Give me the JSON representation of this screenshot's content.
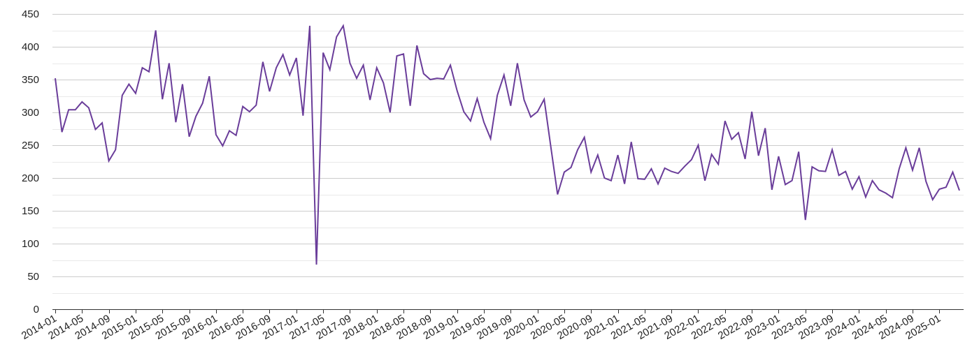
{
  "chart_data": {
    "type": "line",
    "title": "",
    "xlabel": "",
    "ylabel": "",
    "ylim": [
      0,
      450
    ],
    "y_ticks": [
      0,
      50,
      100,
      150,
      200,
      250,
      300,
      350,
      400,
      450
    ],
    "y_minor_grid": true,
    "grid": true,
    "legend": "none",
    "x_tick_labels": [
      "2014-01",
      "2014-05",
      "2014-09",
      "2015-01",
      "2015-05",
      "2015-09",
      "2016-01",
      "2016-05",
      "2016-09",
      "2017-01",
      "2017-05",
      "2017-09",
      "2018-01",
      "2018-05",
      "2018-09",
      "2019-01",
      "2019-05",
      "2019-09",
      "2020-01",
      "2020-05",
      "2020-09",
      "2021-01",
      "2021-05",
      "2021-09",
      "2022-01",
      "2022-05",
      "2022-09",
      "2023-01",
      "2023-05",
      "2023-09",
      "2024-01",
      "2024-05",
      "2024-09",
      "2025-01"
    ],
    "line_color": "#6a3d9a",
    "series": [
      {
        "x": [
          "2014-01",
          "2014-02",
          "2014-03",
          "2014-04",
          "2014-05",
          "2014-06",
          "2014-07",
          "2014-08",
          "2014-09",
          "2014-10",
          "2014-11",
          "2014-12",
          "2015-01",
          "2015-02",
          "2015-03",
          "2015-04",
          "2015-05",
          "2015-06",
          "2015-07",
          "2015-08",
          "2015-09",
          "2015-10",
          "2015-11",
          "2015-12",
          "2016-01",
          "2016-02",
          "2016-03",
          "2016-04",
          "2016-05",
          "2016-06",
          "2016-07",
          "2016-08",
          "2016-09",
          "2016-10",
          "2016-11",
          "2016-12",
          "2017-01",
          "2017-02",
          "2017-03",
          "2017-04",
          "2017-05",
          "2017-06",
          "2017-07",
          "2017-08",
          "2017-09",
          "2017-10",
          "2017-11",
          "2017-12",
          "2018-01",
          "2018-02",
          "2018-03",
          "2018-04",
          "2018-05",
          "2018-06",
          "2018-07",
          "2018-08",
          "2018-09",
          "2018-10",
          "2018-11",
          "2018-12",
          "2019-01",
          "2019-02",
          "2019-03",
          "2019-04",
          "2019-05",
          "2019-06",
          "2019-07",
          "2019-08",
          "2019-09",
          "2019-10",
          "2019-11",
          "2019-12",
          "2020-01",
          "2020-02",
          "2020-03",
          "2020-04",
          "2020-05",
          "2020-06",
          "2020-07",
          "2020-08",
          "2020-09",
          "2020-10",
          "2020-11",
          "2020-12",
          "2021-01",
          "2021-02",
          "2021-03",
          "2021-04",
          "2021-05",
          "2021-06",
          "2021-07",
          "2021-08",
          "2021-09",
          "2021-10",
          "2021-11",
          "2021-12",
          "2022-01",
          "2022-02",
          "2022-03",
          "2022-04",
          "2022-05",
          "2022-06",
          "2022-07",
          "2022-08",
          "2022-09",
          "2022-10",
          "2022-11",
          "2022-12",
          "2023-01",
          "2023-02",
          "2023-03",
          "2023-04",
          "2023-05",
          "2023-06",
          "2023-07",
          "2023-08",
          "2023-09",
          "2023-10",
          "2023-11",
          "2023-12",
          "2024-01",
          "2024-02",
          "2024-03",
          "2024-04",
          "2024-05",
          "2024-06",
          "2024-07",
          "2024-08",
          "2024-09",
          "2024-10",
          "2024-11",
          "2024-12",
          "2025-01",
          "2025-02",
          "2025-03",
          "2025-04"
        ],
        "values": [
          352,
          270,
          304,
          304,
          316,
          307,
          274,
          284,
          226,
          243,
          326,
          343,
          329,
          368,
          362,
          425,
          320,
          375,
          285,
          343,
          263,
          294,
          314,
          355,
          266,
          249,
          272,
          265,
          309,
          301,
          311,
          377,
          332,
          368,
          388,
          357,
          383,
          295,
          432,
          68,
          391,
          365,
          415,
          432,
          375,
          352,
          372,
          319,
          368,
          345,
          300,
          386,
          389,
          310,
          402,
          359,
          350,
          352,
          351,
          372,
          333,
          301,
          287,
          321,
          285,
          260,
          326,
          357,
          310,
          375,
          319,
          293,
          301,
          320,
          247,
          175,
          209,
          216,
          243,
          262,
          209,
          235,
          200,
          196,
          235,
          191,
          255,
          199,
          198,
          214,
          191,
          215,
          210,
          207,
          218,
          228,
          250,
          196,
          236,
          221,
          287,
          259,
          269,
          229,
          301,
          234,
          276,
          182,
          233,
          190,
          196,
          240,
          136,
          217,
          211,
          210,
          243,
          204,
          210,
          183,
          202,
          171,
          196,
          182,
          177,
          170,
          214,
          246,
          212,
          246,
          195,
          167,
          183,
          186,
          209,
          181
        ]
      }
    ]
  }
}
